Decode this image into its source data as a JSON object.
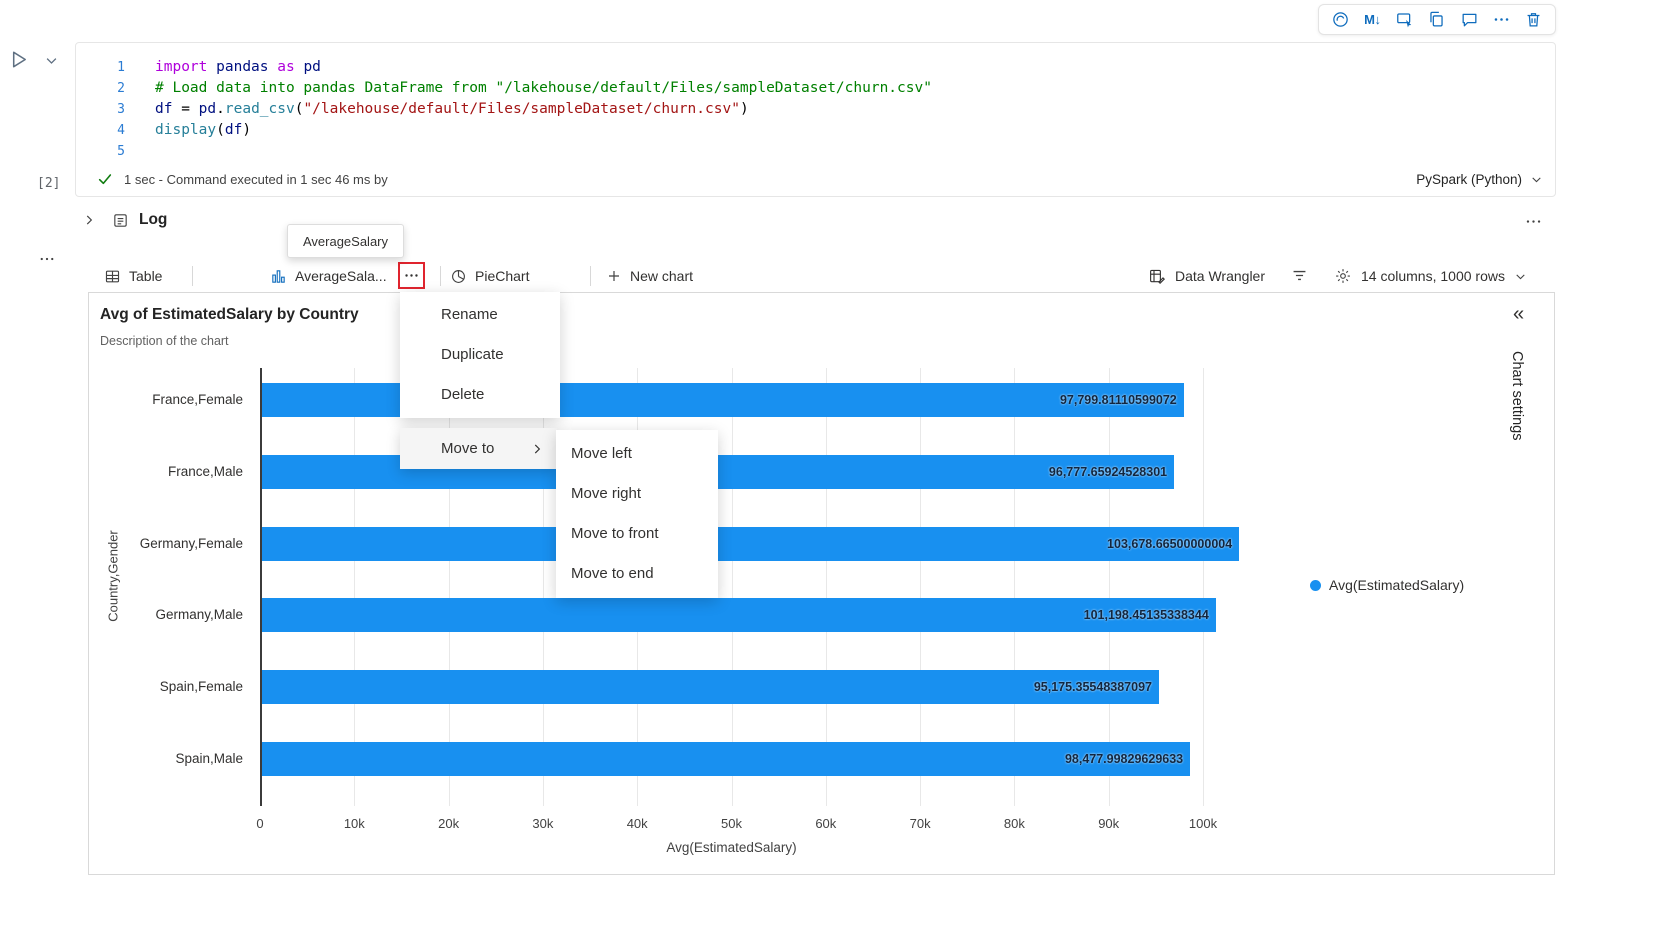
{
  "accent": "#0F6CBD",
  "cell_toolbar": {
    "markdown_label": "M↓"
  },
  "code": {
    "palette": {
      "kw": "#AF00DB",
      "id": "#001080",
      "com": "#008000",
      "str": "#A31515",
      "fn": "#267F99",
      "pl": "#000000"
    },
    "lines": [
      {
        "num": "1",
        "tokens": [
          [
            "kw",
            "import"
          ],
          [
            "pl",
            " "
          ],
          [
            "id",
            "pandas"
          ],
          [
            "pl",
            " "
          ],
          [
            "kw",
            "as"
          ],
          [
            "pl",
            " "
          ],
          [
            "id",
            "pd"
          ]
        ]
      },
      {
        "num": "2",
        "tokens": [
          [
            "com",
            "# Load data into pandas DataFrame from \"/lakehouse/default/Files/sampleDataset/churn.csv\""
          ]
        ]
      },
      {
        "num": "3",
        "tokens": [
          [
            "id",
            "df"
          ],
          [
            "pl",
            " = "
          ],
          [
            "id",
            "pd"
          ],
          [
            "pl",
            "."
          ],
          [
            "fn",
            "read_csv"
          ],
          [
            "pl",
            "("
          ],
          [
            "str",
            "\"/lakehouse/default/Files/sampleDataset/churn.csv\""
          ],
          [
            "pl",
            ")"
          ]
        ]
      },
      {
        "num": "4",
        "tokens": [
          [
            "fn",
            "display"
          ],
          [
            "pl",
            "("
          ],
          [
            "id",
            "df"
          ],
          [
            "pl",
            ")"
          ]
        ]
      },
      {
        "num": "5",
        "tokens": []
      }
    ]
  },
  "cell": {
    "execution_count": "[2]",
    "status_text": "1 sec - Command executed in 1 sec 46 ms by",
    "kernel": "PySpark (Python)"
  },
  "log": {
    "label": "Log"
  },
  "tooltip": {
    "text": "AverageSalary"
  },
  "tabs": {
    "table": "Table",
    "chart": "AverageSala...",
    "pie": "PieChart",
    "new_chart": "New chart"
  },
  "right_tools": {
    "data_wrangler": "Data Wrangler",
    "summary": "14 columns, 1000 rows"
  },
  "menu": {
    "items": [
      "Rename",
      "Duplicate",
      "Delete"
    ],
    "move_to": "Move to",
    "submenu": [
      "Move left",
      "Move right",
      "Move to front",
      "Move to end"
    ]
  },
  "chart_panel": {
    "title": "Avg of EstimatedSalary by Country",
    "subtitle": "Description of the chart",
    "settings_label": "Chart settings",
    "collapse_glyph": "«"
  },
  "chart_data": {
    "type": "bar",
    "orientation": "horizontal",
    "title": "Avg of EstimatedSalary by Country",
    "categories": [
      "France,Female",
      "France,Male",
      "Germany,Female",
      "Germany,Male",
      "Spain,Female",
      "Spain,Male"
    ],
    "values": [
      97799.81110599072,
      96777.65924528301,
      103678.66500000004,
      101198.45135338344,
      95175.35548387097,
      98477.99829629633
    ],
    "value_labels": [
      "97,799.81110599072",
      "96,777.65924528301",
      "103,678.66500000004",
      "101,198.45135338344",
      "95,175.35548387097",
      "98,477.99829629633"
    ],
    "ticks": [
      "0",
      "10k",
      "20k",
      "30k",
      "40k",
      "50k",
      "60k",
      "70k",
      "80k",
      "90k",
      "100k"
    ],
    "xlim": [
      0,
      100000
    ],
    "xlabel": "Avg(EstimatedSalary)",
    "ylabel": "Country,Gender",
    "legend": [
      "Avg(EstimatedSalary)"
    ],
    "legend_position": "right",
    "grid": true,
    "bar_color": "#1890F0"
  }
}
